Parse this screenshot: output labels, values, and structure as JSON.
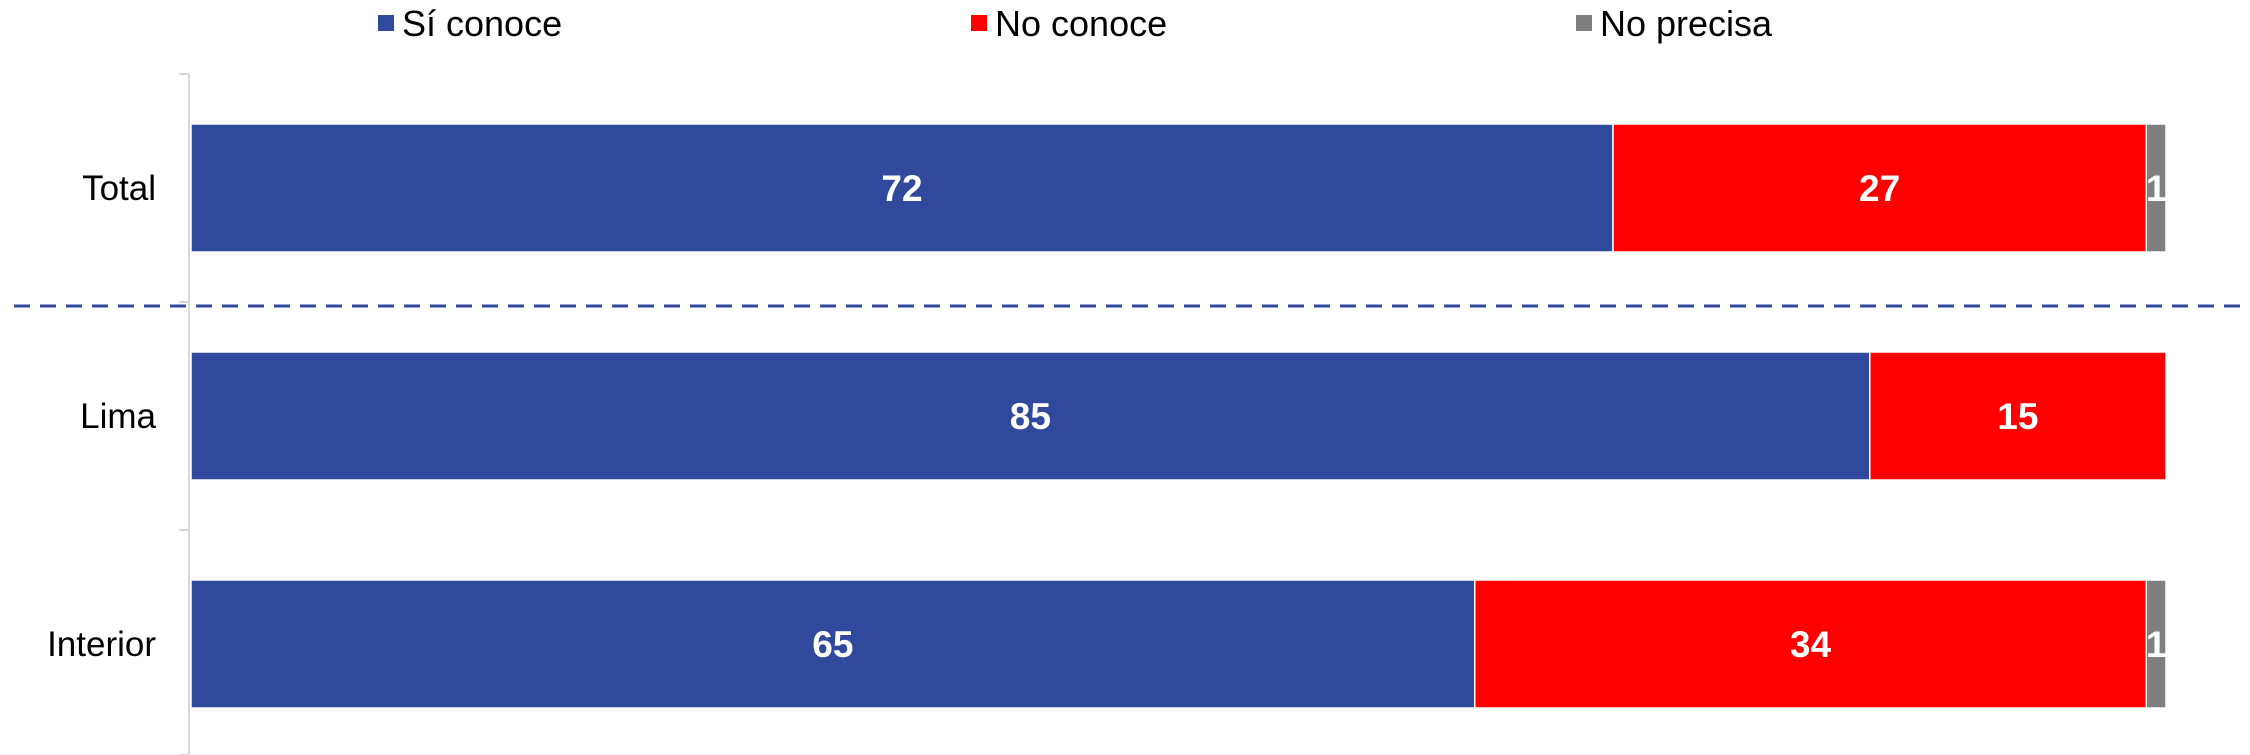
{
  "chart_data": {
    "type": "bar",
    "orientation": "horizontal",
    "stacked": true,
    "categories": [
      "Total",
      "Lima",
      "Interior"
    ],
    "series": [
      {
        "name": "Sí conoce",
        "color": "#31499C",
        "values": [
          72,
          85,
          65
        ]
      },
      {
        "name": "No conoce",
        "color": "#FF0000",
        "values": [
          27,
          15,
          34
        ]
      },
      {
        "name": "No precisa",
        "color": "#7F7F7F",
        "values": [
          1,
          0,
          1
        ]
      }
    ],
    "data_labels": [
      [
        "72",
        "85",
        "65"
      ],
      [
        "27",
        "15",
        "34"
      ],
      [
        "1",
        "",
        "1"
      ]
    ],
    "xlim": [
      0,
      100
    ],
    "legend": "top",
    "grid": false,
    "separator": {
      "after_category": "Total",
      "style": "dashed",
      "color": "#31499C"
    }
  }
}
